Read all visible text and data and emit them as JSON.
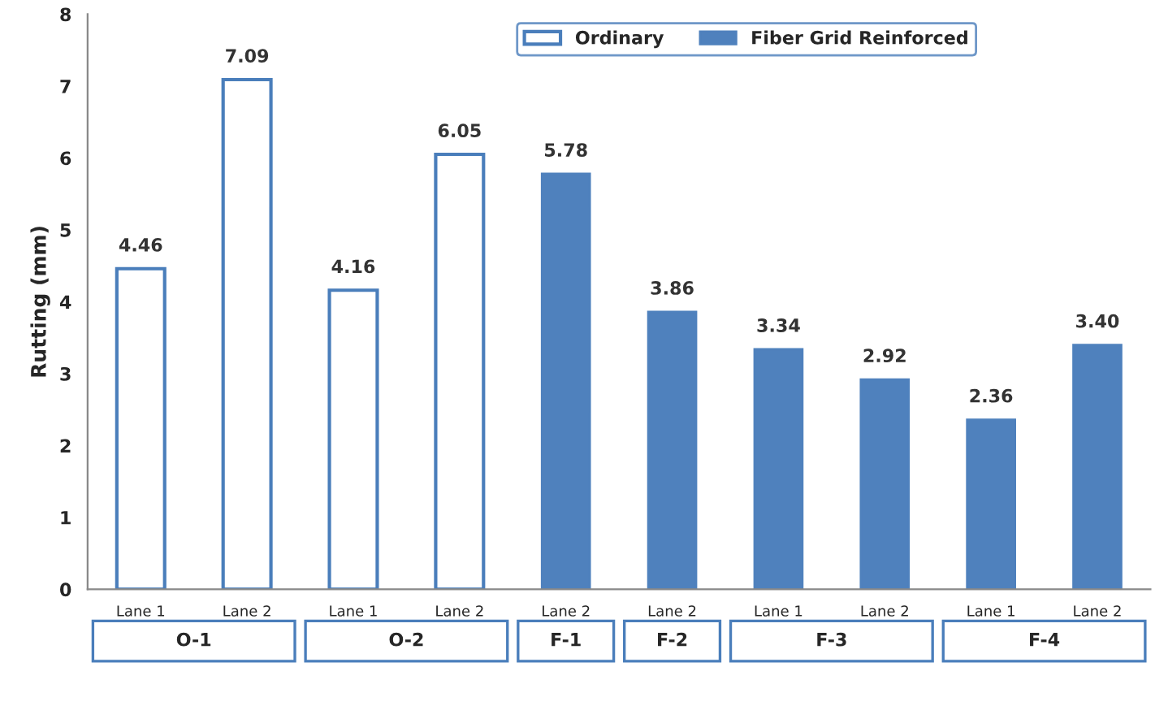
{
  "chart_data": {
    "type": "bar",
    "ylabel": "Rutting (mm)",
    "categories": [
      "Lane 1",
      "Lane 2",
      "Lane 1",
      "Lane 2",
      "Lane 2",
      "Lane 2",
      "Lane 1",
      "Lane 2",
      "Lane 1",
      "Lane 2"
    ],
    "series": [
      {
        "name": "Ordinary",
        "color": "#4a7ebb",
        "values": [
          4.46,
          7.09,
          4.16,
          6.05,
          null,
          null,
          null,
          null,
          null,
          null
        ]
      },
      {
        "name": "Fiber Grid Reinforced",
        "color": "#4f81bd",
        "values": [
          null,
          null,
          null,
          null,
          5.78,
          3.86,
          3.34,
          2.92,
          2.36,
          3.4
        ]
      }
    ],
    "value_labels": [
      "4.46",
      "7.09",
      "4.16",
      "6.05",
      "5.78",
      "3.86",
      "3.34",
      "2.92",
      "2.36",
      "3.40"
    ],
    "ylim": [
      0,
      8
    ],
    "yticks": [
      0,
      1,
      2,
      3,
      4,
      5,
      6,
      7,
      8
    ],
    "annotations": [
      "O-1",
      "O-2",
      "F-1",
      "F-2",
      "F-3",
      "F-4"
    ],
    "legend": "top",
    "grid": false
  }
}
